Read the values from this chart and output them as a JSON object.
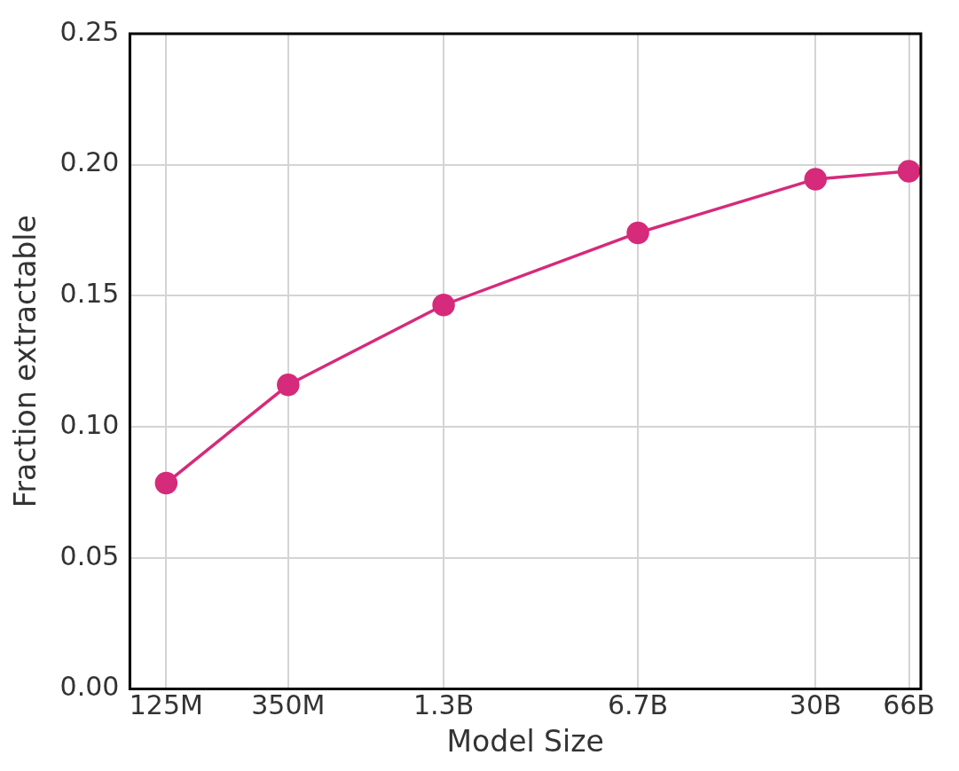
{
  "chart_data": {
    "type": "line",
    "xlabel": "Model Size",
    "ylabel": "Fraction extractable",
    "log": "x",
    "x": [
      125000000,
      350000000,
      1300000000,
      6700000000,
      30000000000,
      66000000000
    ],
    "series": [
      {
        "color": "#d62a7a",
        "values": [
          0.0785,
          0.116,
          0.1465,
          0.174,
          0.1945,
          0.1975
        ]
      }
    ],
    "xlim": [
      92000000,
      73000000000
    ],
    "xticks": [
      {
        "value": 125000000,
        "label": "125M"
      },
      {
        "value": 350000000,
        "label": "350M"
      },
      {
        "value": 1300000000,
        "label": "1.3B"
      },
      {
        "value": 6700000000,
        "label": "6.7B"
      },
      {
        "value": 30000000000,
        "label": "30B"
      },
      {
        "value": 66000000000,
        "label": "66B"
      }
    ],
    "ylim": [
      0,
      0.25
    ],
    "yticks": [
      {
        "value": 0,
        "label": "0.00"
      },
      0.05,
      {
        "value": 0.1,
        "label": "0.10"
      },
      0.15,
      {
        "value": 0.2,
        "label": "0.20"
      },
      0.25
    ],
    "grid": true,
    "marker": "circle",
    "line_style": "solid",
    "legend": false
  }
}
